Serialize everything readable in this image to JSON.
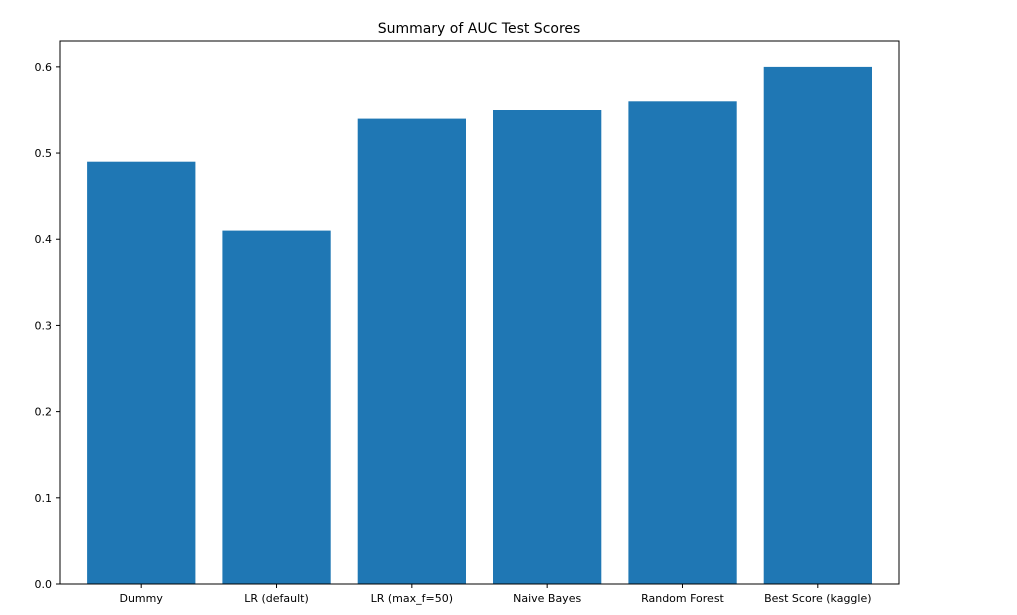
{
  "chart_data": {
    "type": "bar",
    "title": "Summary of AUC Test Scores",
    "xlabel": "",
    "ylabel": "",
    "categories": [
      "Dummy",
      "LR (default)",
      "LR (max_f=50)",
      "Naive Bayes",
      "Random Forest",
      "Best Score (kaggle)"
    ],
    "values": [
      0.49,
      0.41,
      0.54,
      0.55,
      0.56,
      0.6
    ],
    "ylim": [
      0,
      0.63
    ],
    "yticks": [
      "0.0",
      "0.1",
      "0.2",
      "0.3",
      "0.4",
      "0.5",
      "0.6"
    ],
    "grid": false,
    "legend": "none",
    "bar_color": "#1f77b4"
  }
}
